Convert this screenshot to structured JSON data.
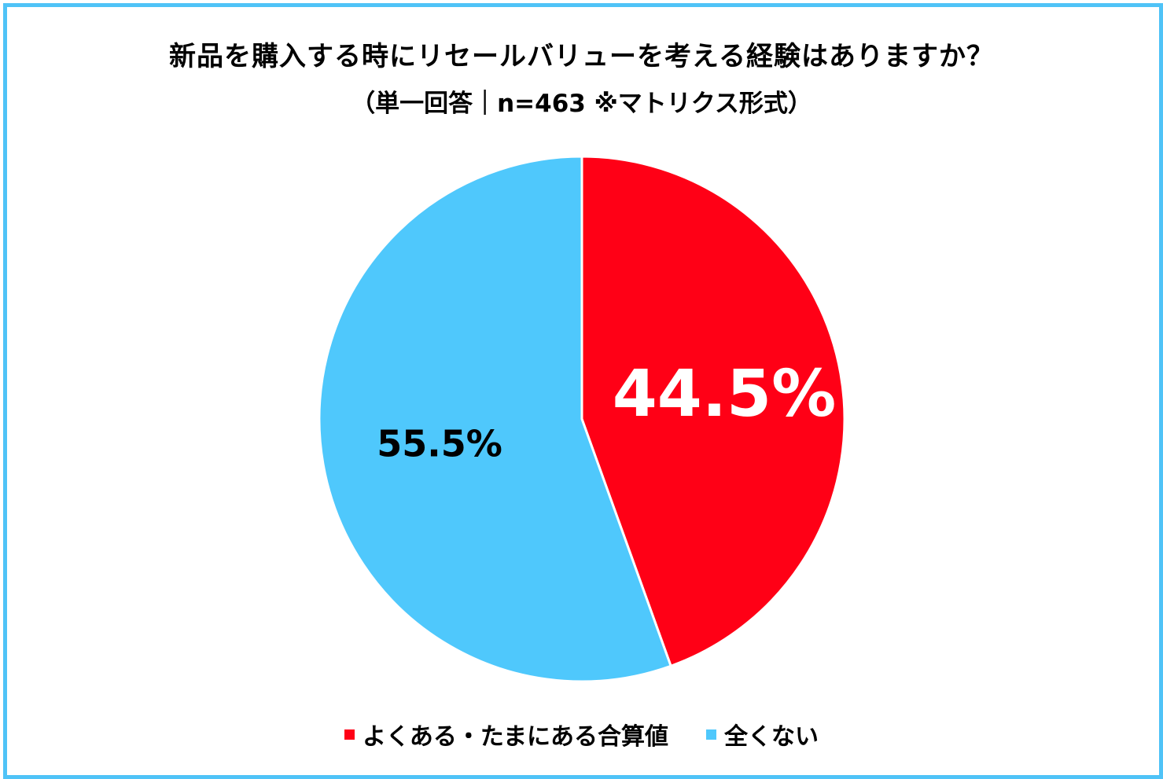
{
  "chart_data": {
    "type": "pie",
    "title": "新品を購入する時にリセールバリューを考える経験はありますか？",
    "subtitle": "（単一回答｜n=463 ※マトリクス形式）",
    "categories": [
      "よくある・たまにある合算値",
      "全くない"
    ],
    "values": [
      44.5,
      55.5
    ],
    "labels": [
      "44.5%",
      "55.5%"
    ],
    "colors": [
      "#ff0016",
      "#4fc8fc"
    ],
    "label_colors": [
      "#ffffff",
      "#000000"
    ],
    "legend_position": "bottom",
    "start_angle": "12 o'clock, clockwise"
  },
  "style": {
    "border_color": "#4fc3f7"
  }
}
